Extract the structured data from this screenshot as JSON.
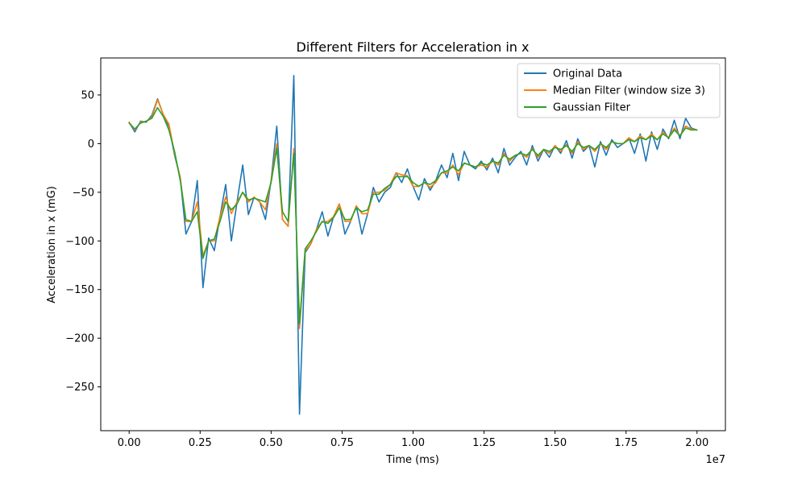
{
  "chart_data": {
    "type": "line",
    "title": "Different Filters for Acceleration in x",
    "xlabel": "Time (ms)",
    "ylabel": "Acceleration in x (mG)",
    "x_offset_label": "1e7",
    "xlim": [
      -0.1,
      2.1
    ],
    "ylim": [
      -295,
      88
    ],
    "x_ticks": [
      0.0,
      0.25,
      0.5,
      0.75,
      1.0,
      1.25,
      1.5,
      1.75,
      2.0
    ],
    "x_tick_labels": [
      "0.00",
      "0.25",
      "0.50",
      "0.75",
      "1.00",
      "1.25",
      "1.50",
      "1.75",
      "2.00"
    ],
    "y_ticks": [
      50,
      0,
      -50,
      -100,
      -150,
      -200,
      -250
    ],
    "y_tick_labels": [
      "50",
      "0",
      "−50",
      "−100",
      "−150",
      "−200",
      "−250"
    ],
    "grid": false,
    "legend_position": "top-right",
    "x": [
      0.0,
      0.02,
      0.04,
      0.06,
      0.08,
      0.1,
      0.12,
      0.14,
      0.16,
      0.18,
      0.2,
      0.22,
      0.24,
      0.26,
      0.28,
      0.3,
      0.32,
      0.34,
      0.36,
      0.38,
      0.4,
      0.42,
      0.44,
      0.46,
      0.48,
      0.5,
      0.52,
      0.54,
      0.56,
      0.58,
      0.6,
      0.62,
      0.64,
      0.66,
      0.68,
      0.7,
      0.72,
      0.74,
      0.76,
      0.78,
      0.8,
      0.82,
      0.84,
      0.86,
      0.88,
      0.9,
      0.92,
      0.94,
      0.96,
      0.98,
      1.0,
      1.02,
      1.04,
      1.06,
      1.08,
      1.1,
      1.12,
      1.14,
      1.16,
      1.18,
      1.2,
      1.22,
      1.24,
      1.26,
      1.28,
      1.3,
      1.32,
      1.34,
      1.36,
      1.38,
      1.4,
      1.42,
      1.44,
      1.46,
      1.48,
      1.5,
      1.52,
      1.54,
      1.56,
      1.58,
      1.6,
      1.62,
      1.64,
      1.66,
      1.68,
      1.7,
      1.72,
      1.74,
      1.76,
      1.78,
      1.8,
      1.82,
      1.84,
      1.86,
      1.88,
      1.9,
      1.92,
      1.94,
      1.96,
      1.98,
      2.0
    ],
    "series": [
      {
        "name": "Original Data",
        "color": "#1f77b4",
        "values": [
          22,
          12,
          23,
          22,
          29,
          46,
          30,
          18,
          -12,
          -35,
          -93,
          -80,
          -38,
          -148,
          -97,
          -110,
          -75,
          -42,
          -100,
          -60,
          -22,
          -73,
          -55,
          -60,
          -78,
          -38,
          18,
          -78,
          -85,
          70,
          -278,
          -112,
          -103,
          -88,
          -70,
          -95,
          -75,
          -62,
          -93,
          -80,
          -64,
          -93,
          -72,
          -45,
          -60,
          -50,
          -45,
          -30,
          -40,
          -26,
          -44,
          -58,
          -36,
          -48,
          -38,
          -22,
          -35,
          -10,
          -38,
          -8,
          -22,
          -26,
          -18,
          -27,
          -15,
          -30,
          -5,
          -22,
          -14,
          -8,
          -22,
          -2,
          -18,
          -6,
          -14,
          -2,
          -10,
          3,
          -15,
          5,
          -8,
          -2,
          -24,
          2,
          -12,
          4,
          -4,
          0,
          6,
          -10,
          10,
          -18,
          12,
          -6,
          15,
          5,
          24,
          5,
          26,
          16,
          14
        ]
      },
      {
        "name": "Median Filter (window size 3)",
        "color": "#ff7f0e",
        "values": [
          22,
          14,
          22,
          23,
          27,
          45,
          30,
          20,
          -10,
          -35,
          -80,
          -80,
          -60,
          -115,
          -100,
          -100,
          -75,
          -55,
          -72,
          -60,
          -50,
          -60,
          -55,
          -60,
          -68,
          -38,
          0,
          -78,
          -85,
          -5,
          -190,
          -110,
          -103,
          -88,
          -80,
          -80,
          -75,
          -62,
          -80,
          -80,
          -64,
          -72,
          -72,
          -50,
          -50,
          -48,
          -42,
          -30,
          -32,
          -33,
          -44,
          -44,
          -40,
          -45,
          -40,
          -30,
          -30,
          -22,
          -32,
          -20,
          -22,
          -24,
          -22,
          -24,
          -18,
          -22,
          -10,
          -18,
          -12,
          -10,
          -14,
          -5,
          -14,
          -6,
          -10,
          -2,
          -8,
          -1,
          -10,
          2,
          -6,
          -2,
          -8,
          0,
          -6,
          2,
          0,
          0,
          6,
          2,
          8,
          4,
          10,
          4,
          12,
          6,
          16,
          8,
          18,
          15,
          14
        ]
      },
      {
        "name": "Gaussian Filter",
        "color": "#2ca02c",
        "values": [
          21,
          15,
          21,
          23,
          26,
          37,
          28,
          14,
          -8,
          -38,
          -78,
          -80,
          -70,
          -118,
          -100,
          -98,
          -80,
          -60,
          -68,
          -62,
          -50,
          -58,
          -56,
          -58,
          -60,
          -40,
          -5,
          -70,
          -80,
          -10,
          -185,
          -108,
          -100,
          -90,
          -80,
          -82,
          -76,
          -66,
          -78,
          -78,
          -66,
          -70,
          -68,
          -52,
          -52,
          -46,
          -42,
          -34,
          -34,
          -34,
          -40,
          -44,
          -40,
          -42,
          -38,
          -30,
          -28,
          -24,
          -28,
          -20,
          -22,
          -24,
          -20,
          -22,
          -18,
          -20,
          -12,
          -16,
          -12,
          -10,
          -12,
          -6,
          -12,
          -6,
          -8,
          -4,
          -6,
          -2,
          -8,
          0,
          -4,
          -2,
          -6,
          0,
          -4,
          2,
          0,
          0,
          4,
          2,
          6,
          4,
          8,
          4,
          10,
          6,
          14,
          8,
          16,
          14,
          14
        ]
      }
    ]
  }
}
